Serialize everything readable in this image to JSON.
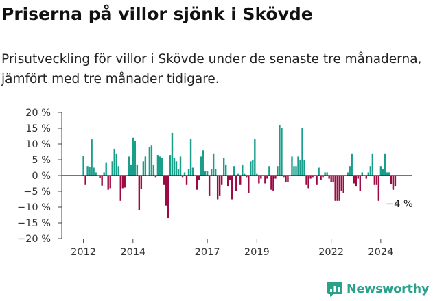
{
  "title": "Priserna på villor sjönk i Skövde",
  "subtitle": "Prisutveckling för villor i Skövde under de senaste tre månaderna, jämfört med tre månader tidigare.",
  "brand": {
    "name": "Newsworthy",
    "icon": "newsworthy-logo-icon"
  },
  "colors": {
    "positive": "#1a9e8c",
    "negative": "#9b0a42",
    "axis": "#444444"
  },
  "chart_data": {
    "type": "bar",
    "title": "",
    "xlabel": "",
    "ylabel": "",
    "y_unit": "%",
    "ylim": [
      -20,
      20
    ],
    "y_ticks": [
      20,
      15,
      10,
      5,
      0,
      -5,
      -10,
      -15,
      -20
    ],
    "y_tick_labels": [
      "20 %",
      "15 %",
      "10 %",
      "5 %",
      "0 %",
      "−5 %",
      "−10 %",
      "−15 %",
      "−20 %"
    ],
    "x_range": [
      2011.125,
      2025.25
    ],
    "x_ticks": [
      {
        "year": 2012,
        "label": "2012"
      },
      {
        "year": 2014,
        "label": "2014"
      },
      {
        "year": 2017,
        "label": "2017"
      },
      {
        "year": 2019,
        "label": "2019"
      },
      {
        "year": 2022,
        "label": "2022"
      },
      {
        "year": 2024,
        "label": "2024"
      }
    ],
    "end_label": "−4 %",
    "grid": false,
    "legend": "none",
    "series": [
      {
        "start": "2012-01",
        "frequency": "monthly",
        "values": [
          6.3,
          -3,
          3,
          2.8,
          11.5,
          2.5,
          1,
          0,
          -0.8,
          -3.2,
          1,
          4,
          -4.5,
          -4,
          4.5,
          8.5,
          7,
          3,
          -8,
          -4,
          -3.8,
          0,
          6,
          3.5,
          12,
          11,
          3.5,
          -11,
          -4.2,
          4.5,
          6,
          0,
          9,
          9.5,
          3.5,
          -0.5,
          6.5,
          6,
          5.5,
          -3,
          -9.5,
          -13.5,
          6.5,
          13.5,
          5.5,
          4.5,
          2,
          6,
          -0.5,
          1,
          -3,
          2,
          11.5,
          2.5,
          0,
          -4.5,
          -1.5,
          6,
          8,
          1.5,
          1.5,
          -6.5,
          2,
          7,
          2,
          -7.5,
          -6.5,
          -3,
          5.5,
          3.5,
          -3.5,
          -1.5,
          -7.5,
          3,
          -5,
          0.5,
          -3,
          3.5,
          0.5,
          -0.5,
          -5.5,
          4.5,
          5,
          11.5,
          0.5,
          -2.5,
          -1,
          0,
          -2.5,
          -1,
          3,
          -4.5,
          -5,
          -1,
          3,
          16,
          15,
          -0.5,
          -2,
          -2,
          0,
          6,
          3,
          3,
          6,
          5,
          15,
          5,
          -3,
          -4,
          -1,
          -0.5,
          0,
          -3,
          2.5,
          -1.5,
          -0.5,
          1,
          1,
          -1,
          -2,
          -2,
          -8,
          -8,
          -8,
          -5,
          -5.5,
          0,
          1,
          3,
          7,
          -2.5,
          -3.5,
          -1,
          -5,
          1,
          0,
          -1,
          1,
          3,
          7,
          -3,
          -3,
          -8,
          3,
          2,
          7,
          1,
          1,
          -2.8,
          -4.5,
          -3.5
        ]
      }
    ]
  }
}
